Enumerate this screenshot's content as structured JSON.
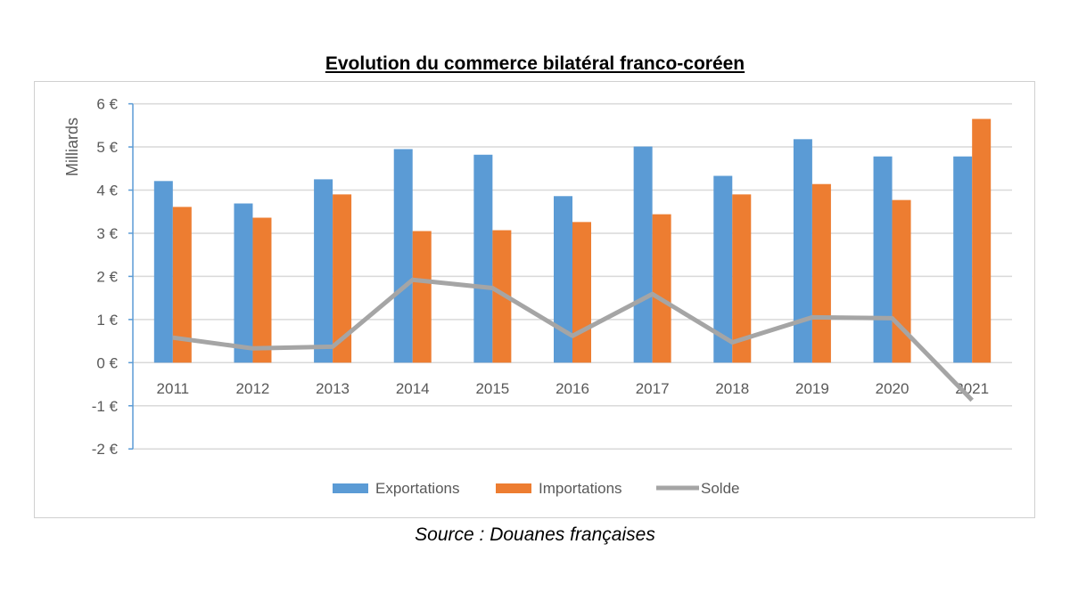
{
  "chart_data": {
    "type": "bar",
    "title": "Evolution du commerce bilatéral franco-coréen",
    "ylabel": "Milliards",
    "ylim": [
      -2,
      6
    ],
    "yticks": [
      "-2 €",
      "-1 €",
      "0 €",
      "1 €",
      "2 €",
      "3 €",
      "4 €",
      "5 €",
      "6 €"
    ],
    "grid": true,
    "legend_position": "bottom",
    "categories": [
      "2011",
      "2012",
      "2013",
      "2014",
      "2015",
      "2016",
      "2017",
      "2018",
      "2019",
      "2020",
      "2021"
    ],
    "series": [
      {
        "name": "Exportations",
        "type": "bar",
        "color": "#5b9bd5",
        "values": [
          4.21,
          3.69,
          4.25,
          4.95,
          4.82,
          3.86,
          5.01,
          4.33,
          5.18,
          4.78,
          4.78
        ]
      },
      {
        "name": "Importations",
        "type": "bar",
        "color": "#ed7d31",
        "values": [
          3.61,
          3.36,
          3.9,
          3.05,
          3.07,
          3.26,
          3.44,
          3.9,
          4.14,
          3.77,
          5.65
        ]
      },
      {
        "name": "Solde",
        "type": "line",
        "color": "#a5a5a5",
        "values": [
          0.58,
          0.33,
          0.37,
          1.92,
          1.73,
          0.62,
          1.59,
          0.47,
          1.05,
          1.03,
          -0.87
        ]
      }
    ]
  },
  "source": "Source : Douanes françaises"
}
